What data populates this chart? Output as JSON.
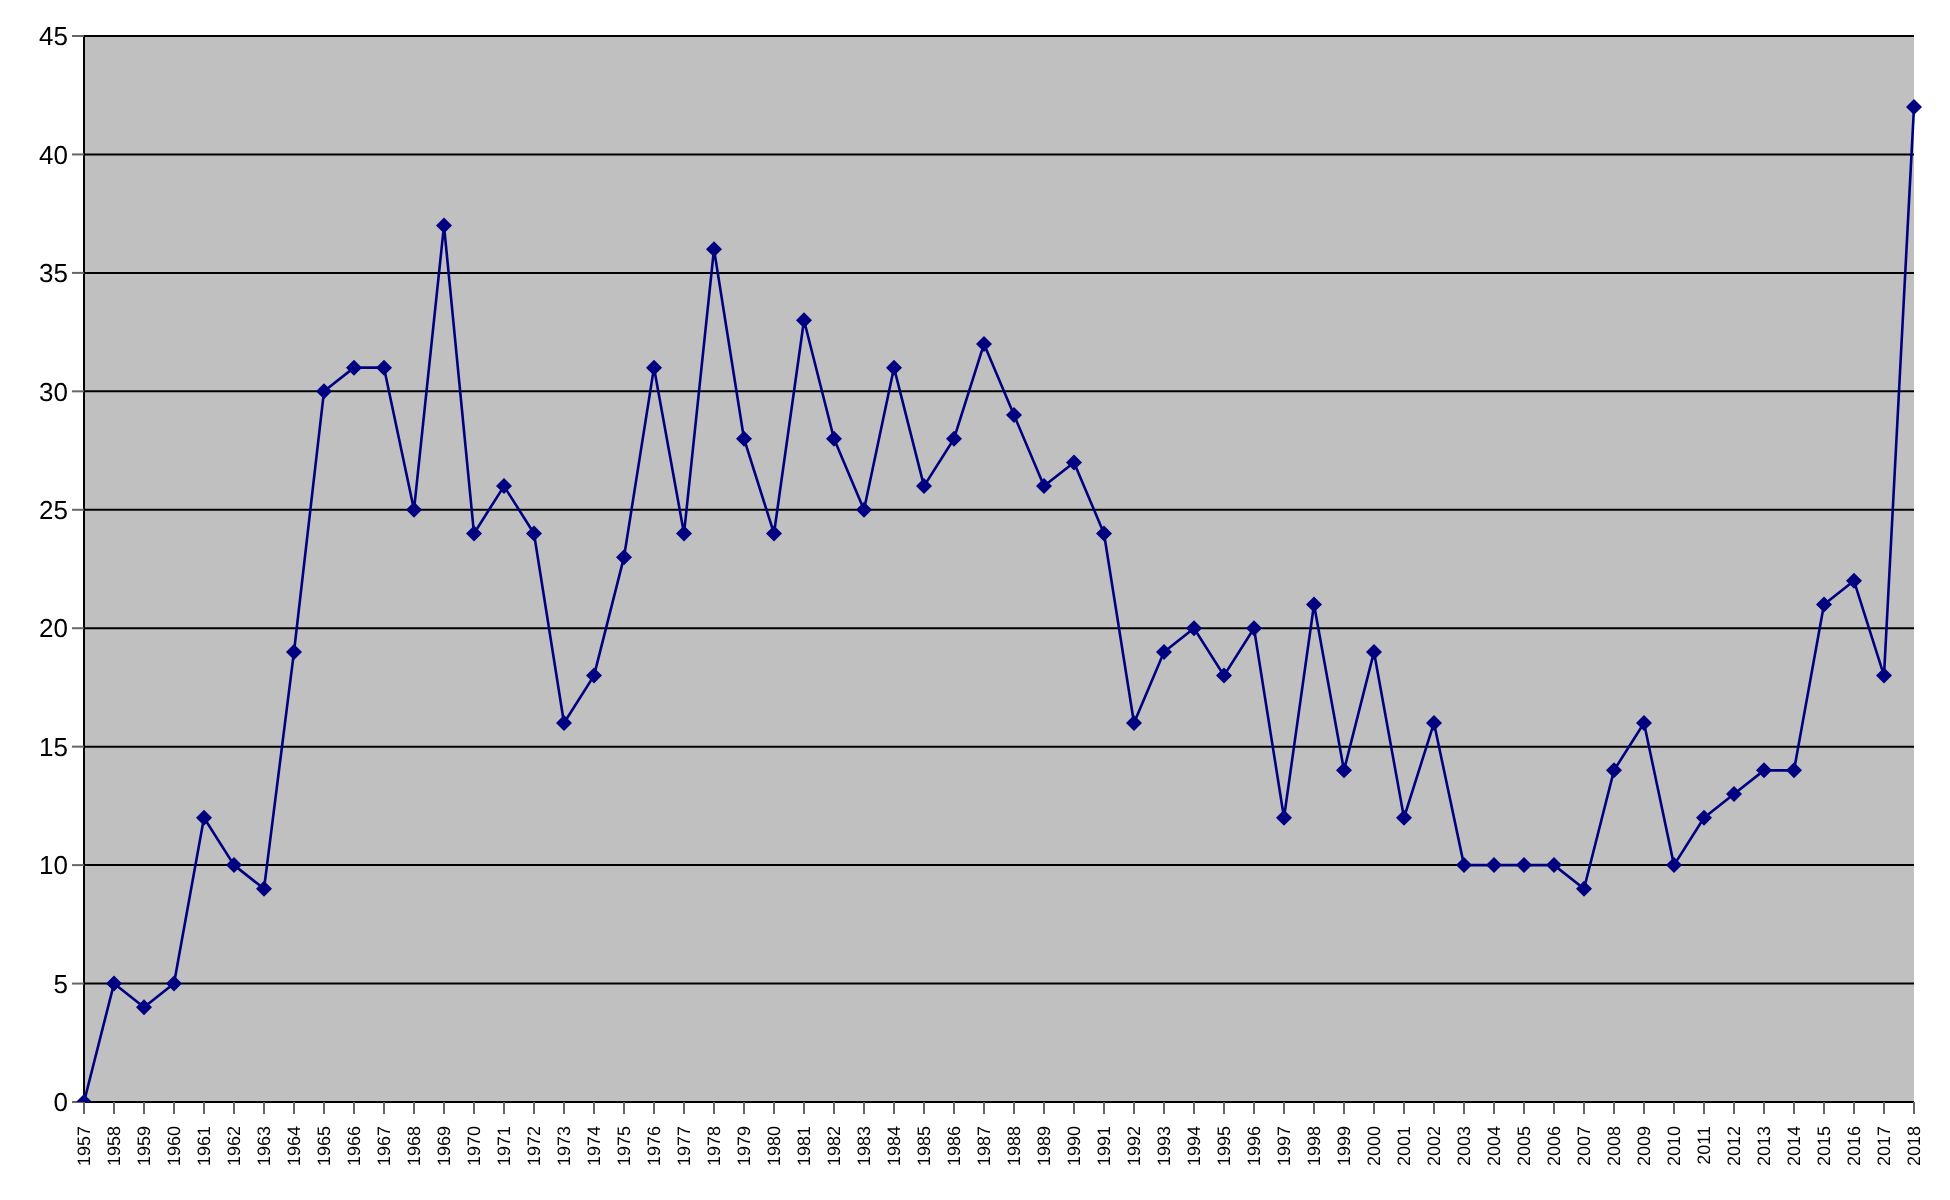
{
  "chart_data": {
    "type": "line",
    "categories": [
      "1957",
      "1958",
      "1959",
      "1960",
      "1961",
      "1962",
      "1963",
      "1964",
      "1965",
      "1966",
      "1967",
      "1968",
      "1969",
      "1970",
      "1971",
      "1972",
      "1973",
      "1974",
      "1975",
      "1976",
      "1977",
      "1978",
      "1979",
      "1980",
      "1981",
      "1982",
      "1983",
      "1984",
      "1985",
      "1986",
      "1987",
      "1988",
      "1989",
      "1990",
      "1991",
      "1992",
      "1993",
      "1994",
      "1995",
      "1996",
      "1997",
      "1998",
      "1999",
      "2000",
      "2001",
      "2002",
      "2003",
      "2004",
      "2005",
      "2006",
      "2007",
      "2008",
      "2009",
      "2010",
      "2011",
      "2012",
      "2013",
      "2014",
      "2015",
      "2016",
      "2017",
      "2018"
    ],
    "series": [
      {
        "color": "#000080",
        "values": [
          0,
          5,
          4,
          5,
          12,
          10,
          9,
          19,
          30,
          31,
          31,
          25,
          37,
          24,
          26,
          24,
          16,
          18,
          23,
          31,
          24,
          36,
          28,
          24,
          33,
          28,
          25,
          31,
          26,
          28,
          32,
          29,
          26,
          27,
          24,
          16,
          19,
          20,
          18,
          20,
          12,
          21,
          14,
          19,
          12,
          16,
          10,
          10,
          10,
          10,
          9,
          14,
          16,
          10,
          12,
          13,
          14,
          14,
          21,
          22,
          18,
          42
        ]
      }
    ],
    "ylim": [
      0,
      45
    ],
    "yticks": [
      0,
      5,
      10,
      15,
      20,
      25,
      30,
      35,
      40,
      45
    ],
    "grid": "y",
    "marker": "diamond",
    "line_style": "solid",
    "legend": false
  }
}
